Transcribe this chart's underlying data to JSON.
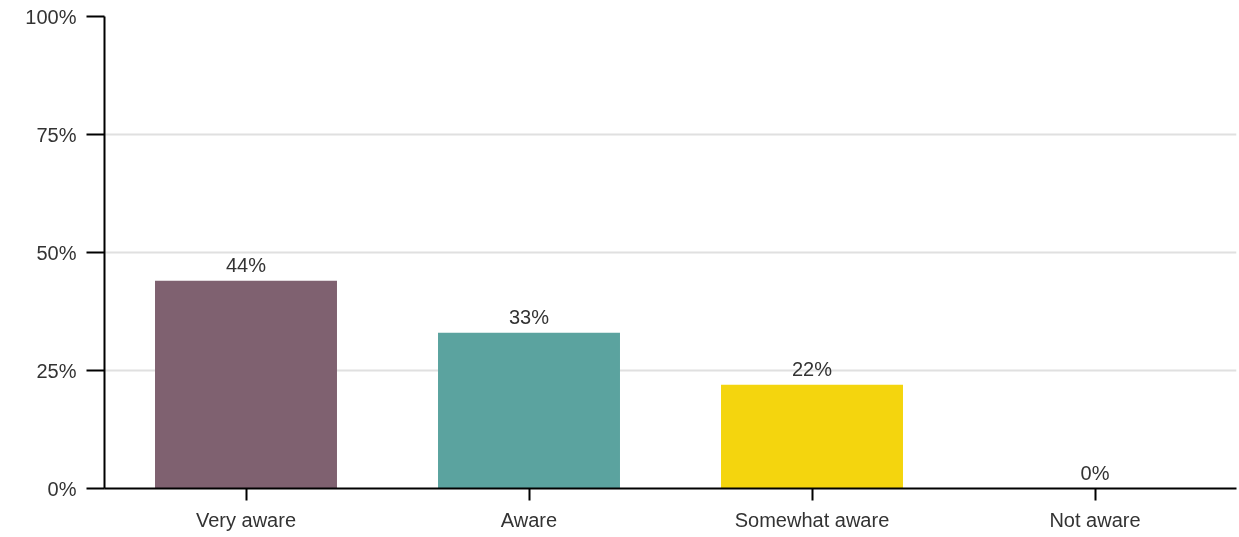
{
  "chart_data": {
    "type": "bar",
    "categories": [
      "Very aware",
      "Aware",
      "Somewhat aware",
      "Not aware"
    ],
    "values": [
      44,
      33,
      22,
      0
    ],
    "colors": [
      "#7f6170",
      "#5ba39f",
      "#f4d50e",
      "#9e9e9e"
    ],
    "value_labels": [
      "44%",
      "33%",
      "22%",
      "0%"
    ],
    "ylim": [
      0,
      100
    ],
    "yticks": [
      {
        "value": 0,
        "label": "0%"
      },
      {
        "value": 25,
        "label": "25%"
      },
      {
        "value": 50,
        "label": "50%"
      },
      {
        "value": 75,
        "label": "75%"
      },
      {
        "value": 100,
        "label": "100%"
      }
    ],
    "grid": "y"
  }
}
